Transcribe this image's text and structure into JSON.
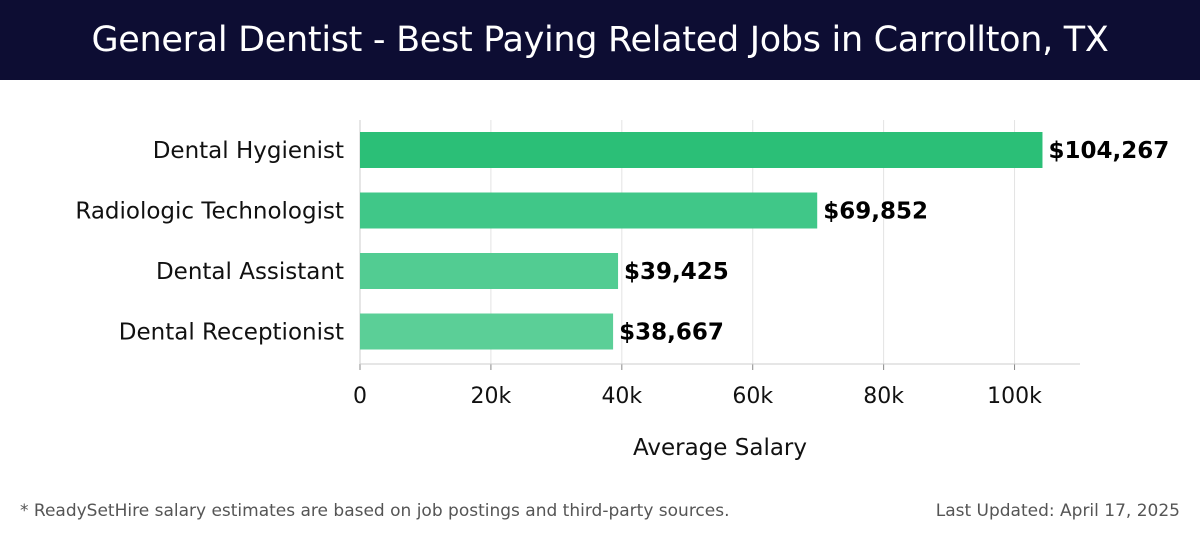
{
  "title": "General Dentist - Best Paying Related Jobs in Carrollton, TX",
  "footer": {
    "note": "* ReadySetHire salary estimates are based on job postings and third-party sources.",
    "updated": "Last Updated: April 17, 2025"
  },
  "chart_data": {
    "type": "bar",
    "orientation": "horizontal",
    "categories": [
      "Dental Hygienist",
      "Radiologic Technologist",
      "Dental Assistant",
      "Dental Receptionist"
    ],
    "values": [
      104267,
      69852,
      39425,
      38667
    ],
    "value_labels": [
      "$104,267",
      "$69,852",
      "$39,425",
      "$38,667"
    ],
    "xlabel": "Average Salary",
    "ylabel": "",
    "xlim": [
      0,
      110000
    ],
    "ticks": [
      0,
      20000,
      40000,
      60000,
      80000,
      100000
    ],
    "tick_labels": [
      "0",
      "20k",
      "40k",
      "60k",
      "80k",
      "100k"
    ],
    "grid": true,
    "colors": [
      "#2bbf77",
      "#40c788",
      "#52cc92",
      "#5bcf97"
    ]
  }
}
